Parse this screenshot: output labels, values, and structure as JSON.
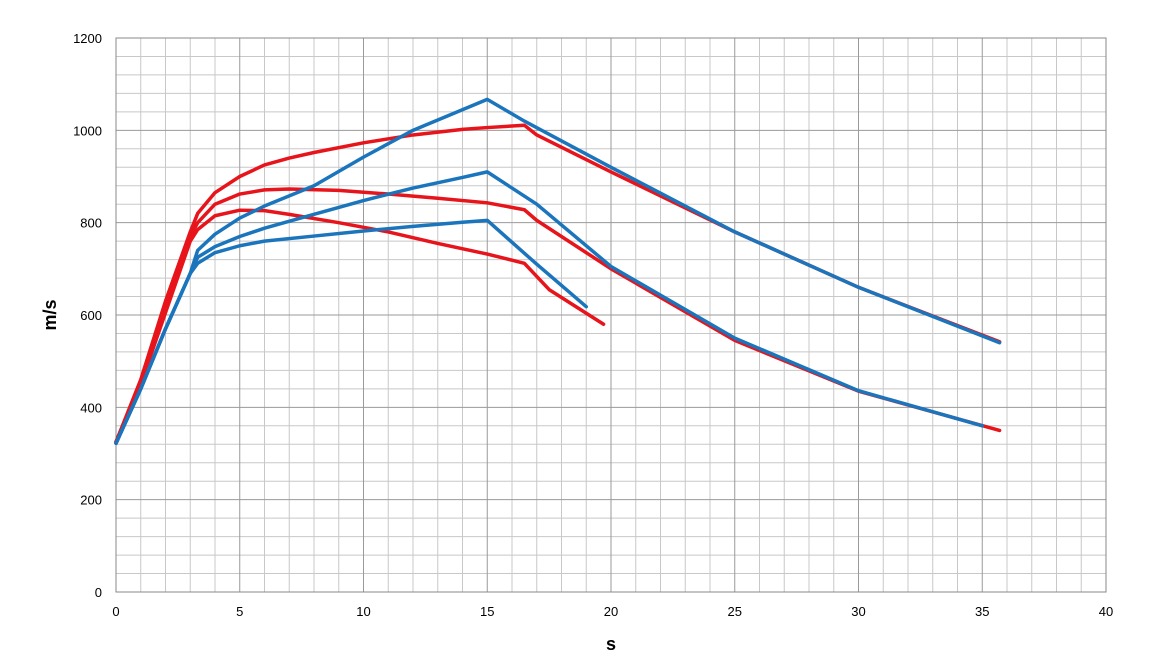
{
  "chart_data": {
    "type": "line",
    "title": "",
    "xlabel": "s",
    "ylabel": "m/s",
    "xlim": [
      0,
      40
    ],
    "ylim": [
      0,
      1200
    ],
    "x_major_step": 5,
    "x_minor_step": 1,
    "y_major_step": 200,
    "y_minor_step": 40,
    "grid": true,
    "x_ticks": [
      "0",
      "5",
      "10",
      "15",
      "20",
      "25",
      "30",
      "35",
      "40"
    ],
    "y_ticks": [
      "0",
      "200",
      "400",
      "600",
      "800",
      "1000",
      "1200"
    ],
    "colors": {
      "red": "#e8141b",
      "blue": "#1b75bc"
    },
    "series": [
      {
        "color": "#e8141b",
        "points": [
          [
            0,
            325
          ],
          [
            1,
            460
          ],
          [
            2,
            630
          ],
          [
            3,
            780
          ],
          [
            3.3,
            820
          ],
          [
            4,
            865
          ],
          [
            5,
            900
          ],
          [
            6,
            925
          ],
          [
            7,
            940
          ],
          [
            8,
            952
          ],
          [
            10,
            973
          ],
          [
            12,
            990
          ],
          [
            14,
            1002
          ],
          [
            15,
            1006
          ],
          [
            16.5,
            1011
          ],
          [
            17,
            990
          ],
          [
            20,
            910
          ],
          [
            25,
            780
          ],
          [
            30,
            660
          ],
          [
            35.7,
            542
          ]
        ]
      },
      {
        "color": "#e8141b",
        "points": [
          [
            0,
            325
          ],
          [
            1,
            455
          ],
          [
            2,
            615
          ],
          [
            3,
            770
          ],
          [
            3.3,
            800
          ],
          [
            4,
            840
          ],
          [
            5,
            862
          ],
          [
            6,
            871
          ],
          [
            7,
            873
          ],
          [
            9,
            870
          ],
          [
            11,
            862
          ],
          [
            13,
            853
          ],
          [
            15,
            843
          ],
          [
            16.5,
            828
          ],
          [
            17,
            805
          ],
          [
            20,
            700
          ],
          [
            25,
            545
          ],
          [
            30,
            435
          ],
          [
            35.7,
            350
          ]
        ]
      },
      {
        "color": "#e8141b",
        "points": [
          [
            0,
            325
          ],
          [
            1,
            450
          ],
          [
            2,
            605
          ],
          [
            3,
            760
          ],
          [
            3.3,
            785
          ],
          [
            4,
            815
          ],
          [
            5,
            827
          ],
          [
            6,
            826
          ],
          [
            7,
            818
          ],
          [
            9,
            800
          ],
          [
            11,
            780
          ],
          [
            13,
            755
          ],
          [
            15,
            732
          ],
          [
            16.5,
            712
          ],
          [
            17.5,
            655
          ],
          [
            19.7,
            580
          ]
        ]
      },
      {
        "color": "#1b75bc",
        "points": [
          [
            0,
            322
          ],
          [
            1,
            440
          ],
          [
            2,
            570
          ],
          [
            3,
            690
          ],
          [
            3.3,
            740
          ],
          [
            4,
            775
          ],
          [
            5,
            810
          ],
          [
            6,
            836
          ],
          [
            8,
            880
          ],
          [
            10,
            942
          ],
          [
            12,
            1000
          ],
          [
            15,
            1067
          ],
          [
            16.5,
            1020
          ],
          [
            20,
            920
          ],
          [
            25,
            780
          ],
          [
            30,
            660
          ],
          [
            35.7,
            540
          ]
        ]
      },
      {
        "color": "#1b75bc",
        "points": [
          [
            0,
            322
          ],
          [
            1,
            440
          ],
          [
            2,
            570
          ],
          [
            3,
            690
          ],
          [
            3.3,
            725
          ],
          [
            4,
            748
          ],
          [
            5,
            770
          ],
          [
            6,
            788
          ],
          [
            8,
            818
          ],
          [
            10,
            848
          ],
          [
            12,
            875
          ],
          [
            14,
            898
          ],
          [
            15,
            910
          ],
          [
            17,
            840
          ],
          [
            20,
            705
          ],
          [
            25,
            550
          ],
          [
            30,
            436
          ],
          [
            35,
            360
          ]
        ]
      },
      {
        "color": "#1b75bc",
        "points": [
          [
            0,
            322
          ],
          [
            1,
            440
          ],
          [
            2,
            570
          ],
          [
            3,
            690
          ],
          [
            3.3,
            712
          ],
          [
            4,
            735
          ],
          [
            5,
            750
          ],
          [
            6,
            760
          ],
          [
            8,
            771
          ],
          [
            10,
            782
          ],
          [
            12,
            792
          ],
          [
            14,
            801
          ],
          [
            15,
            805
          ],
          [
            17,
            710
          ],
          [
            19,
            618
          ]
        ]
      }
    ]
  }
}
